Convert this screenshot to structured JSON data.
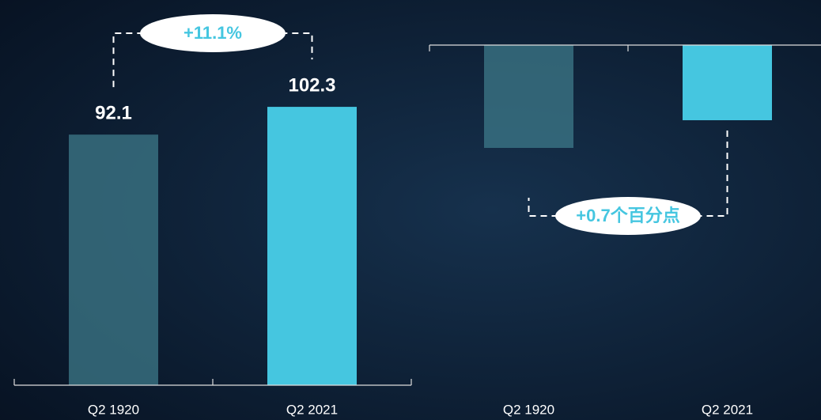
{
  "chart_data": [
    {
      "type": "bar",
      "categories": [
        "Q2 1920",
        "Q2 2021"
      ],
      "values": [
        92.1,
        102.3
      ],
      "colors": [
        "#3d7a8a",
        "#45c6e0"
      ],
      "ylim": [
        0,
        125
      ],
      "data_labels": true,
      "annotation": "+11.1%"
    },
    {
      "type": "bar",
      "categories": [
        "Q2 1920",
        "Q2 2021"
      ],
      "values": [
        -2.6,
        -1.9
      ],
      "colors": [
        "#3d7a8a",
        "#45c6e0"
      ],
      "ylim": [
        -8.6,
        0
      ],
      "data_labels": false,
      "annotation": "+0.7个百分点"
    }
  ]
}
